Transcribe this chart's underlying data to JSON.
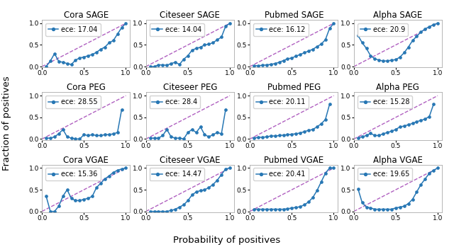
{
  "titles": [
    [
      "Cora SAGE",
      "Citeseer SAGE",
      "Pubmed SAGE",
      "Alpha SAGE"
    ],
    [
      "Cora PEG",
      "Citeseer PEG",
      "Pubmed PEG",
      "Alpha PEG"
    ],
    [
      "Cora VGAE",
      "Citeseer VGAE",
      "Pubmed VGAE",
      "Alpha VGAE"
    ]
  ],
  "ece": {
    "Cora SAGE": "17.04",
    "Citeseer SAGE": "14.04",
    "Pubmed SAGE": "16.12",
    "Alpha SAGE": "20.9",
    "Cora PEG": "28.55",
    "Citeseer PEG": "28.4",
    "Pubmed PEG": "20.11",
    "Alpha PEG": "15.28",
    "Cora VGAE": "15.36",
    "Citeseer VGAE": "14.47",
    "Pubmed VGAE": "20.41",
    "Alpha VGAE": "19.65"
  },
  "panel_data": {
    "Cora SAGE": {
      "x": [
        0.05,
        0.1,
        0.15,
        0.2,
        0.25,
        0.3,
        0.35,
        0.4,
        0.45,
        0.5,
        0.55,
        0.6,
        0.65,
        0.7,
        0.75,
        0.8,
        0.85,
        0.9,
        0.95,
        1.0
      ],
      "y": [
        0.0,
        0.13,
        0.3,
        0.12,
        0.1,
        0.07,
        0.05,
        0.15,
        0.2,
        0.22,
        0.25,
        0.28,
        0.33,
        0.4,
        0.45,
        0.55,
        0.6,
        0.75,
        0.9,
        1.0
      ]
    },
    "Citeseer SAGE": {
      "x": [
        0.05,
        0.1,
        0.15,
        0.2,
        0.25,
        0.3,
        0.35,
        0.4,
        0.45,
        0.5,
        0.55,
        0.6,
        0.65,
        0.7,
        0.75,
        0.8,
        0.85,
        0.9,
        0.95,
        1.0
      ],
      "y": [
        0.0,
        0.0,
        0.04,
        0.04,
        0.03,
        0.07,
        0.1,
        0.05,
        0.17,
        0.25,
        0.38,
        0.42,
        0.45,
        0.5,
        0.52,
        0.55,
        0.62,
        0.68,
        0.93,
        1.0
      ]
    },
    "Pubmed SAGE": {
      "x": [
        0.05,
        0.1,
        0.15,
        0.2,
        0.25,
        0.3,
        0.35,
        0.4,
        0.45,
        0.5,
        0.55,
        0.6,
        0.65,
        0.7,
        0.75,
        0.8,
        0.85,
        0.9,
        0.95,
        1.0
      ],
      "y": [
        0.02,
        0.02,
        0.03,
        0.04,
        0.05,
        0.07,
        0.1,
        0.14,
        0.18,
        0.2,
        0.24,
        0.28,
        0.32,
        0.36,
        0.4,
        0.46,
        0.52,
        0.62,
        0.88,
        1.0
      ]
    },
    "Alpha SAGE": {
      "x": [
        0.05,
        0.1,
        0.15,
        0.2,
        0.25,
        0.3,
        0.35,
        0.4,
        0.45,
        0.5,
        0.55,
        0.6,
        0.65,
        0.7,
        0.75,
        0.8,
        0.85,
        0.9,
        0.95,
        1.0
      ],
      "y": [
        0.72,
        0.55,
        0.42,
        0.25,
        0.18,
        0.15,
        0.13,
        0.13,
        0.15,
        0.16,
        0.22,
        0.32,
        0.45,
        0.6,
        0.7,
        0.8,
        0.87,
        0.92,
        0.97,
        1.0
      ]
    },
    "Cora PEG": {
      "x": [
        0.05,
        0.1,
        0.15,
        0.2,
        0.25,
        0.3,
        0.35,
        0.4,
        0.45,
        0.5,
        0.55,
        0.6,
        0.65,
        0.7,
        0.75,
        0.8,
        0.85,
        0.9,
        0.95
      ],
      "y": [
        0.02,
        0.02,
        0.05,
        0.12,
        0.22,
        0.05,
        0.02,
        0.0,
        0.0,
        0.1,
        0.08,
        0.1,
        0.08,
        0.08,
        0.1,
        0.1,
        0.12,
        0.15,
        0.68
      ]
    },
    "Citeseer PEG": {
      "x": [
        0.05,
        0.1,
        0.15,
        0.2,
        0.25,
        0.3,
        0.35,
        0.4,
        0.45,
        0.5,
        0.55,
        0.6,
        0.65,
        0.7,
        0.75,
        0.8,
        0.85,
        0.9,
        0.95
      ],
      "y": [
        0.02,
        0.02,
        0.02,
        0.08,
        0.22,
        0.05,
        0.02,
        0.02,
        0.0,
        0.15,
        0.22,
        0.15,
        0.28,
        0.1,
        0.05,
        0.1,
        0.15,
        0.12,
        0.68
      ]
    },
    "Pubmed PEG": {
      "x": [
        0.05,
        0.1,
        0.15,
        0.2,
        0.25,
        0.3,
        0.35,
        0.4,
        0.45,
        0.5,
        0.55,
        0.6,
        0.65,
        0.7,
        0.75,
        0.8,
        0.85,
        0.9,
        0.95
      ],
      "y": [
        0.02,
        0.04,
        0.04,
        0.05,
        0.07,
        0.07,
        0.08,
        0.09,
        0.1,
        0.11,
        0.12,
        0.14,
        0.17,
        0.2,
        0.22,
        0.28,
        0.35,
        0.45,
        0.8
      ]
    },
    "Alpha PEG": {
      "x": [
        0.05,
        0.1,
        0.15,
        0.2,
        0.25,
        0.3,
        0.35,
        0.4,
        0.45,
        0.5,
        0.55,
        0.6,
        0.65,
        0.7,
        0.75,
        0.8,
        0.85,
        0.9,
        0.95
      ],
      "y": [
        0.03,
        0.05,
        0.08,
        0.13,
        0.08,
        0.08,
        0.12,
        0.15,
        0.18,
        0.22,
        0.28,
        0.3,
        0.33,
        0.36,
        0.4,
        0.43,
        0.46,
        0.52,
        0.8
      ]
    },
    "Cora VGAE": {
      "x": [
        0.05,
        0.1,
        0.15,
        0.2,
        0.25,
        0.3,
        0.35,
        0.4,
        0.45,
        0.5,
        0.55,
        0.6,
        0.65,
        0.7,
        0.75,
        0.8,
        0.85,
        0.9,
        0.95,
        1.0
      ],
      "y": [
        0.35,
        0.0,
        0.0,
        0.12,
        0.35,
        0.5,
        0.3,
        0.25,
        0.25,
        0.28,
        0.3,
        0.35,
        0.55,
        0.65,
        0.75,
        0.82,
        0.9,
        0.95,
        0.98,
        1.0
      ]
    },
    "Citeseer VGAE": {
      "x": [
        0.05,
        0.1,
        0.15,
        0.2,
        0.25,
        0.3,
        0.35,
        0.4,
        0.45,
        0.5,
        0.55,
        0.6,
        0.65,
        0.7,
        0.75,
        0.8,
        0.85,
        0.9,
        0.95,
        1.0
      ],
      "y": [
        0.0,
        0.0,
        0.0,
        0.0,
        0.0,
        0.02,
        0.05,
        0.1,
        0.15,
        0.25,
        0.38,
        0.45,
        0.48,
        0.5,
        0.55,
        0.62,
        0.72,
        0.85,
        0.98,
        1.0
      ]
    },
    "Pubmed VGAE": {
      "x": [
        0.05,
        0.1,
        0.15,
        0.2,
        0.25,
        0.3,
        0.35,
        0.4,
        0.45,
        0.5,
        0.55,
        0.6,
        0.65,
        0.7,
        0.75,
        0.8,
        0.85,
        0.9,
        0.95,
        1.0
      ],
      "y": [
        0.05,
        0.05,
        0.05,
        0.05,
        0.05,
        0.05,
        0.05,
        0.05,
        0.06,
        0.08,
        0.09,
        0.11,
        0.15,
        0.22,
        0.32,
        0.48,
        0.68,
        0.88,
        1.0,
        1.0
      ]
    },
    "Alpha VGAE": {
      "x": [
        0.05,
        0.1,
        0.15,
        0.2,
        0.25,
        0.3,
        0.35,
        0.4,
        0.45,
        0.5,
        0.55,
        0.6,
        0.65,
        0.7,
        0.75,
        0.8,
        0.85,
        0.9,
        0.95,
        1.0
      ],
      "y": [
        0.52,
        0.2,
        0.1,
        0.08,
        0.05,
        0.05,
        0.05,
        0.05,
        0.05,
        0.08,
        0.1,
        0.12,
        0.18,
        0.28,
        0.45,
        0.62,
        0.75,
        0.88,
        0.95,
        1.0
      ]
    }
  },
  "line_color": "#2777b4",
  "dashed_color": "#b060c0",
  "marker": "o",
  "marker_size": 2.8,
  "line_width": 1.1,
  "dashed_lw": 1.0,
  "xlabel": "Probability of positives",
  "ylabel": "Fraction of positives",
  "bg_color": "#ffffff",
  "title_fontsize": 8.5,
  "label_fontsize": 9.5,
  "tick_fontsize": 6.5,
  "legend_fontsize": 7.0
}
